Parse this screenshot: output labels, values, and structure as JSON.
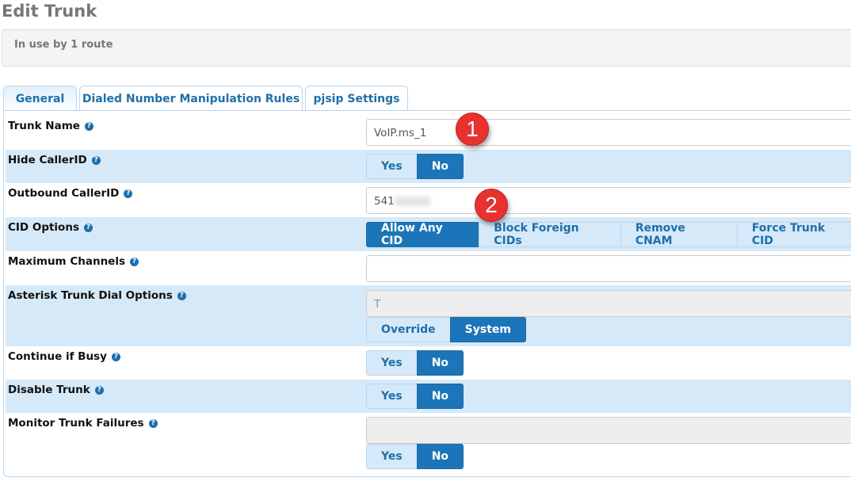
{
  "page": {
    "title": "Edit Trunk",
    "usage": "In use by 1 route"
  },
  "tabs": [
    {
      "label": "General",
      "active": true
    },
    {
      "label": "Dialed Number Manipulation Rules"
    },
    {
      "label": "pjsip Settings"
    }
  ],
  "help_icon": "?",
  "fields": {
    "trunk_name": {
      "label": "Trunk Name",
      "value": "VoIP.ms_1"
    },
    "hide_callerid": {
      "label": "Hide CallerID",
      "options": [
        "Yes",
        "No"
      ],
      "selected": "No"
    },
    "outbound_callerid": {
      "label": "Outbound CallerID",
      "value": "541"
    },
    "cid_options": {
      "label": "CID Options",
      "options": [
        "Allow Any CID",
        "Block Foreign CIDs",
        "Remove CNAM",
        "Force Trunk CID"
      ],
      "selected": "Allow Any CID"
    },
    "max_channels": {
      "label": "Maximum Channels",
      "value": ""
    },
    "dial_options": {
      "label": "Asterisk Trunk Dial Options",
      "value": "T",
      "options": [
        "Override",
        "System"
      ],
      "selected": "System"
    },
    "continue_busy": {
      "label": "Continue if Busy",
      "options": [
        "Yes",
        "No"
      ],
      "selected": "No"
    },
    "disable_trunk": {
      "label": "Disable Trunk",
      "options": [
        "Yes",
        "No"
      ],
      "selected": "No"
    },
    "monitor_failures": {
      "label": "Monitor Trunk Failures",
      "value": "",
      "options": [
        "Yes",
        "No"
      ],
      "selected": "No"
    }
  },
  "annotations": [
    "1",
    "2"
  ],
  "colors": {
    "accent": "#1c75b8",
    "row_highlight": "#d6e9f8",
    "badge": "#e8322f"
  }
}
